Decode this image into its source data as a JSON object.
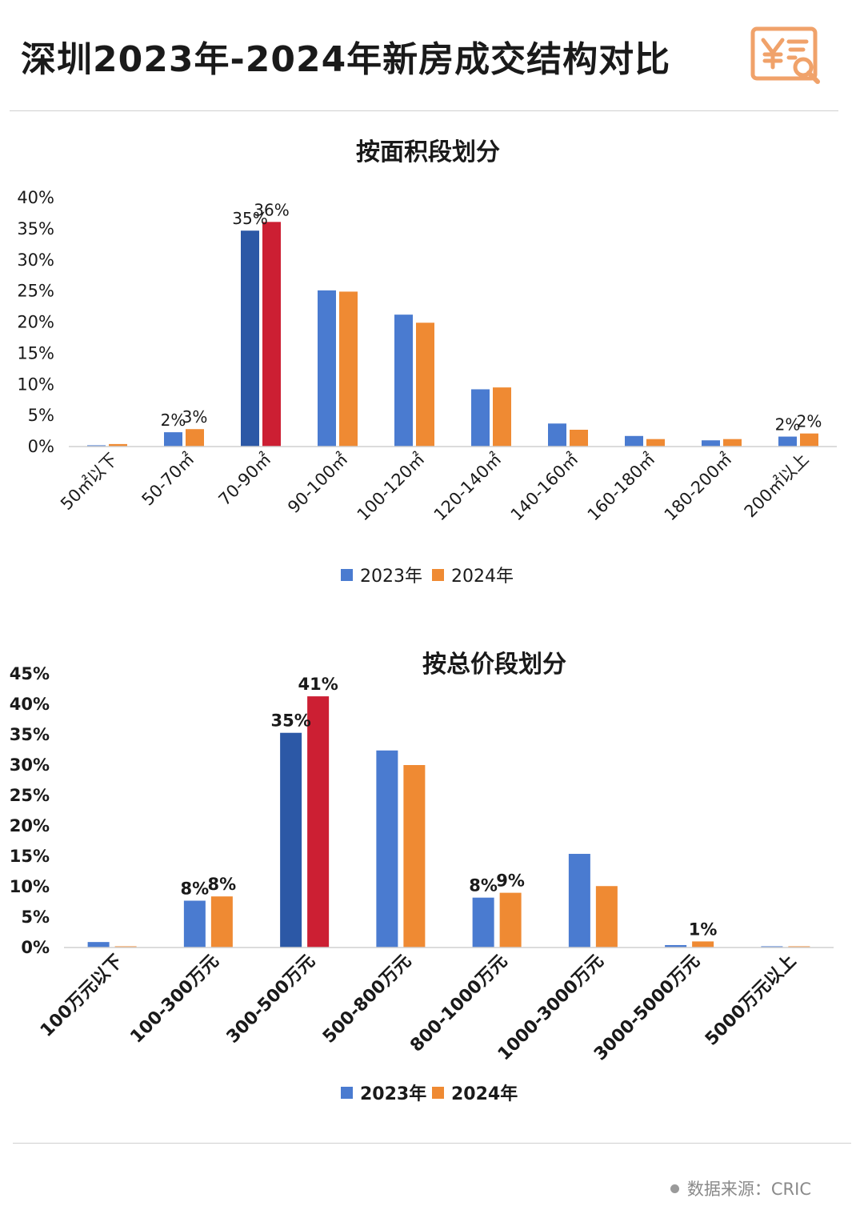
{
  "page": {
    "title": "深圳2023年-2024年新房成交结构对比",
    "source_label": "数据来源：",
    "source_value": "CRIC",
    "logo_icon": "yuan-receipt-search-icon"
  },
  "colors": {
    "series_2023": "#4a7bd0",
    "series_2024": "#ef8a33",
    "highlight_2023": "#2c58a6",
    "highlight_2024": "#cc1f33",
    "logo": "#f0a26a"
  },
  "chart_data": [
    {
      "type": "bar",
      "title": "按面积段划分",
      "categories": [
        "50㎡以下",
        "50-70㎡",
        "70-90㎡",
        "90-100㎡",
        "100-120㎡",
        "120-140㎡",
        "140-160㎡",
        "160-180㎡",
        "180-200㎡",
        "200㎡以上"
      ],
      "series": [
        {
          "name": "2023年",
          "values": [
            0.2,
            2.3,
            34.7,
            25.1,
            21.2,
            9.2,
            3.7,
            1.7,
            1.0,
            1.6
          ]
        },
        {
          "name": "2024年",
          "values": [
            0.4,
            2.8,
            36.1,
            24.9,
            19.9,
            9.5,
            2.7,
            1.2,
            1.2,
            2.1
          ]
        }
      ],
      "data_labels": [
        {
          "category": 1,
          "series": 0,
          "text": "2%"
        },
        {
          "category": 1,
          "series": 1,
          "text": "3%"
        },
        {
          "category": 2,
          "series": 0,
          "text": "35%"
        },
        {
          "category": 2,
          "series": 1,
          "text": "36%"
        },
        {
          "category": 9,
          "series": 0,
          "text": "2%"
        },
        {
          "category": 9,
          "series": 1,
          "text": "2%"
        }
      ],
      "highlight_category": 2,
      "y_ticks": [
        "0%",
        "5%",
        "10%",
        "15%",
        "20%",
        "25%",
        "30%",
        "35%",
        "40%"
      ],
      "ylim": [
        0,
        40
      ],
      "xlabel": "",
      "ylabel": "",
      "legend_position": "bottom-center",
      "grid": false
    },
    {
      "type": "bar",
      "title": "按总价段划分",
      "categories": [
        "100万元以下",
        "100-300万元",
        "300-500万元",
        "500-800万元",
        "800-1000万元",
        "1000-3000万元",
        "3000-5000万元",
        "5000万元以上"
      ],
      "series": [
        {
          "name": "2023年",
          "values": [
            0.9,
            7.7,
            35.3,
            32.4,
            8.2,
            15.4,
            0.4,
            0.2
          ]
        },
        {
          "name": "2024年",
          "values": [
            0.1,
            8.4,
            41.3,
            30.0,
            9.0,
            10.1,
            1.0,
            0.1
          ]
        }
      ],
      "data_labels": [
        {
          "category": 1,
          "series": 0,
          "text": "8%"
        },
        {
          "category": 1,
          "series": 1,
          "text": "8%"
        },
        {
          "category": 2,
          "series": 0,
          "text": "35%"
        },
        {
          "category": 2,
          "series": 1,
          "text": "41%"
        },
        {
          "category": 4,
          "series": 0,
          "text": "8%"
        },
        {
          "category": 4,
          "series": 1,
          "text": "9%"
        },
        {
          "category": 6,
          "series": 1,
          "text": "1%"
        }
      ],
      "highlight_category": 2,
      "y_ticks": [
        "0%",
        "5%",
        "10%",
        "15%",
        "20%",
        "25%",
        "30%",
        "35%",
        "40%",
        "45%"
      ],
      "ylim": [
        0,
        45
      ],
      "xlabel": "",
      "ylabel": "",
      "legend_position": "bottom-center",
      "grid": false
    }
  ]
}
